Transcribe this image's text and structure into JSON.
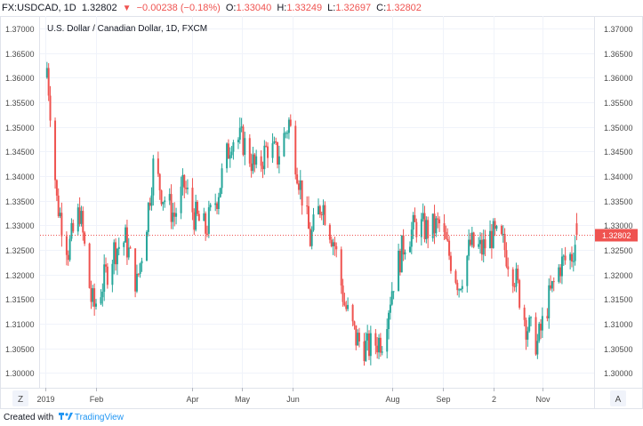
{
  "header": {
    "symbol": "FX:USDCAD, 1D",
    "last": "1.32802",
    "change": "−0.00238 (−0.18%)",
    "open_label": "O:",
    "open": "1.33040",
    "high_label": "H:",
    "high": "1.33249",
    "low_label": "L:",
    "low": "1.32697",
    "close_label": "C:",
    "close": "1.32802",
    "down_color": "#ef5350"
  },
  "chart_data": {
    "type": "candlestick",
    "title": "U.S. Dollar / Canadian Dollar, 1D, FXCM",
    "y_ticks": [
      "1.37000",
      "1.36500",
      "1.36000",
      "1.35500",
      "1.35000",
      "1.34500",
      "1.34000",
      "1.33500",
      "1.33000",
      "1.32500",
      "1.32000",
      "1.31500",
      "1.31000",
      "1.30500",
      "1.30000"
    ],
    "ylim": [
      1.297,
      1.3725
    ],
    "x_labels": [
      "2019",
      "Feb",
      "Apr",
      "May",
      "Jun",
      "Aug",
      "Sep",
      "2",
      "Nov"
    ],
    "last_price": 1.32802,
    "last_price_label": "1.32802",
    "up_color": "#26a69a",
    "down_color": "#ef5350",
    "grid": true,
    "anchors": [
      [
        "2019-01-02",
        1.362
      ],
      [
        "2019-01-04",
        1.354
      ],
      [
        "2019-01-08",
        1.335
      ],
      [
        "2019-01-15",
        1.325
      ],
      [
        "2019-01-22",
        1.333
      ],
      [
        "2019-01-29",
        1.315
      ],
      [
        "2019-01-31",
        1.3135
      ],
      [
        "2019-02-05",
        1.318
      ],
      [
        "2019-02-12",
        1.325
      ],
      [
        "2019-02-19",
        1.327
      ],
      [
        "2019-02-26",
        1.318
      ],
      [
        "2019-03-04",
        1.331
      ],
      [
        "2019-03-08",
        1.342
      ],
      [
        "2019-03-14",
        1.336
      ],
      [
        "2019-03-21",
        1.332
      ],
      [
        "2019-03-27",
        1.338
      ],
      [
        "2019-04-02",
        1.332
      ],
      [
        "2019-04-09",
        1.329
      ],
      [
        "2019-04-16",
        1.336
      ],
      [
        "2019-04-25",
        1.348
      ],
      [
        "2019-05-02",
        1.347
      ],
      [
        "2019-05-10",
        1.341
      ],
      [
        "2019-05-17",
        1.346
      ],
      [
        "2019-05-23",
        1.344
      ],
      [
        "2019-05-30",
        1.351
      ],
      [
        "2019-06-06",
        1.338
      ],
      [
        "2019-06-12",
        1.327
      ],
      [
        "2019-06-19",
        1.335
      ],
      [
        "2019-06-27",
        1.326
      ],
      [
        "2019-07-03",
        1.314
      ],
      [
        "2019-07-10",
        1.307
      ],
      [
        "2019-07-17",
        1.305
      ],
      [
        "2019-07-26",
        1.307
      ],
      [
        "2019-08-02",
        1.319
      ],
      [
        "2019-08-09",
        1.327
      ],
      [
        "2019-08-16",
        1.33
      ],
      [
        "2019-08-23",
        1.329
      ],
      [
        "2019-08-30",
        1.33
      ],
      [
        "2019-09-05",
        1.324
      ],
      [
        "2019-09-11",
        1.318
      ],
      [
        "2019-09-18",
        1.326
      ],
      [
        "2019-09-25",
        1.325
      ],
      [
        "2019-10-01",
        1.328
      ],
      [
        "2019-10-08",
        1.326
      ],
      [
        "2019-10-15",
        1.32
      ],
      [
        "2019-10-22",
        1.31
      ],
      [
        "2019-10-29",
        1.306
      ],
      [
        "2019-11-05",
        1.315
      ],
      [
        "2019-11-12",
        1.322
      ],
      [
        "2019-11-19",
        1.324
      ],
      [
        "2019-11-22",
        1.328
      ]
    ]
  },
  "controls": {
    "z_button": "Z",
    "a_button": "A"
  },
  "footer": {
    "created_with": "Created with",
    "brand": "TradingView"
  }
}
